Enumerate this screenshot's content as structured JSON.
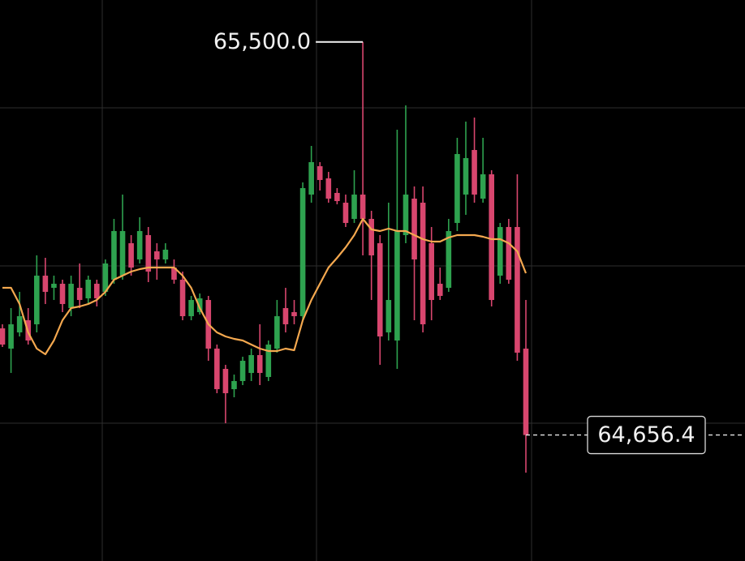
{
  "chart_data": {
    "type": "candlestick",
    "ylim": [
      64386,
      65590
    ],
    "up_color": "#2ea24f",
    "down_color": "#d8466e",
    "ma_color": "#f4a84f",
    "open": [
      64885.3,
      64841.8,
      64876.6,
      64902.7,
      64894,
      64998.4,
      64972.3,
      64981,
      64928.8,
      64972.3,
      64949.7,
      64981,
      64963.6,
      64989.7,
      64998.4,
      65068,
      65033.2,
      65085.4,
      65050.6,
      65033.2,
      65015.8,
      64989.7,
      64911.4,
      64920.1,
      64946.2,
      64841.8,
      64798.3,
      64754.8,
      64772.2,
      64789.6,
      64827.9,
      64780.9,
      64841.8,
      64928.8,
      64920.1,
      64911.4,
      65172.4,
      65233.3,
      65207.2,
      65175.9,
      65155,
      65120.2,
      65172.4,
      65120.2,
      65068,
      64876.6,
      64859.2,
      65085.4,
      65163.7,
      65155,
      65068,
      64981,
      64972.3,
      65111.5,
      65172.4,
      65268.1,
      65163.7,
      65215.9,
      64998.4,
      65102.8,
      65102.8,
      64841.8
    ],
    "high": [
      64894,
      64928.8,
      64963.6,
      64928.8,
      65041.9,
      65036.7,
      64998.4,
      64989.7,
      64998.4,
      65024.5,
      64998.4,
      64989.7,
      65033.2,
      65120.2,
      65172.4,
      65085.4,
      65123.7,
      65102.8,
      65068,
      65068,
      65033.2,
      65007.1,
      64954.9,
      64960.1,
      64954.9,
      64850.5,
      64807,
      64786.1,
      64824.4,
      64841.8,
      64894,
      64859.2,
      64946.2,
      64972.3,
      64946.2,
      65198.5,
      65276.8,
      65242,
      65221.1,
      65186.3,
      65172.4,
      65224.6,
      65500,
      65137.6,
      65085.4,
      65155,
      65311.6,
      65363.8,
      65189.8,
      65189.8,
      65102.8,
      65015.8,
      65120.2,
      65294.2,
      65329,
      65337.7,
      65294.2,
      65224.6,
      65111.5,
      65120.2,
      65215.9,
      64946.2
    ],
    "low": [
      64845.3,
      64789.6,
      64867.9,
      64850.5,
      64876.6,
      64937.5,
      64946.2,
      64920.1,
      64911.4,
      64928.8,
      64937.5,
      64932.3,
      64954.9,
      64981,
      64989.7,
      64998.4,
      65024.5,
      64984.5,
      64989.7,
      65024.5,
      64981,
      64902.7,
      64902.7,
      64914.9,
      64815.7,
      64746.1,
      64681.7,
      64737.4,
      64763.5,
      64772.2,
      64763.5,
      64772.2,
      64833.1,
      64876.6,
      64894,
      64902.7,
      65155,
      65181.1,
      65155,
      65151.5,
      65102.8,
      65111.5,
      65041.9,
      64946.2,
      64807,
      64859.2,
      64798.3,
      65068,
      64902.7,
      64876.6,
      64902.7,
      64946.2,
      64963.6,
      65094.1,
      65128.9,
      65155,
      65155,
      64932.3,
      64981,
      64981,
      64815.7,
      64575.6
    ],
    "close": [
      64850.5,
      64894,
      64911.4,
      64859.2,
      64998.4,
      64963.6,
      64981,
      64937.5,
      64981,
      64946.2,
      64989.7,
      64949.7,
      65024.5,
      65094.1,
      65094.1,
      65015.8,
      65094.1,
      65007.1,
      65033.2,
      65054.1,
      64989.7,
      64911.4,
      64946.2,
      64949.7,
      64841.8,
      64754.8,
      64746.1,
      64772.2,
      64815.7,
      64827.9,
      64789.6,
      64850.5,
      64911.4,
      64894,
      64911.4,
      65186.3,
      65242,
      65203.7,
      65163.7,
      65158.5,
      65111.5,
      65172.4,
      65120.2,
      65041.9,
      64867.9,
      64946.2,
      65094.1,
      65172.4,
      65033.2,
      64894,
      64946.2,
      64954.9,
      65094.1,
      65259.4,
      65250.7,
      65172.4,
      65215.9,
      64946.2,
      65102.8,
      64989.7,
      64833.1,
      64656.4
    ],
    "ma": [
      64972.3,
      64972.3,
      64937.5,
      64876.6,
      64841.8,
      64829.6,
      64859.2,
      64902.7,
      64928.8,
      64932.3,
      64937.5,
      64946.2,
      64963.6,
      64989.7,
      64998.4,
      65007.1,
      65012.3,
      65015.8,
      65015.8,
      65015.8,
      65015.8,
      64998.4,
      64972.3,
      64928.8,
      64894,
      64876.6,
      64867.9,
      64862.7,
      64859.2,
      64850.5,
      64841.8,
      64836.6,
      64836.6,
      64841.8,
      64838.3,
      64902.7,
      64946.2,
      64981,
      65015.8,
      65036.7,
      65059.3,
      65085.4,
      65120.2,
      65097.6,
      65094.1,
      65099.3,
      65094.1,
      65094.1,
      65085.4,
      65076.7,
      65071.5,
      65071.5,
      65080.2,
      65085.4,
      65085.4,
      65085.4,
      65081.9,
      65076.7,
      65076.7,
      65068,
      65050.6,
      65003.6
    ],
    "annotations": {
      "high": {
        "value": 65500,
        "label": "65,500.0"
      },
      "last": {
        "value": 64656.4,
        "label": "64,656.4"
      }
    }
  }
}
